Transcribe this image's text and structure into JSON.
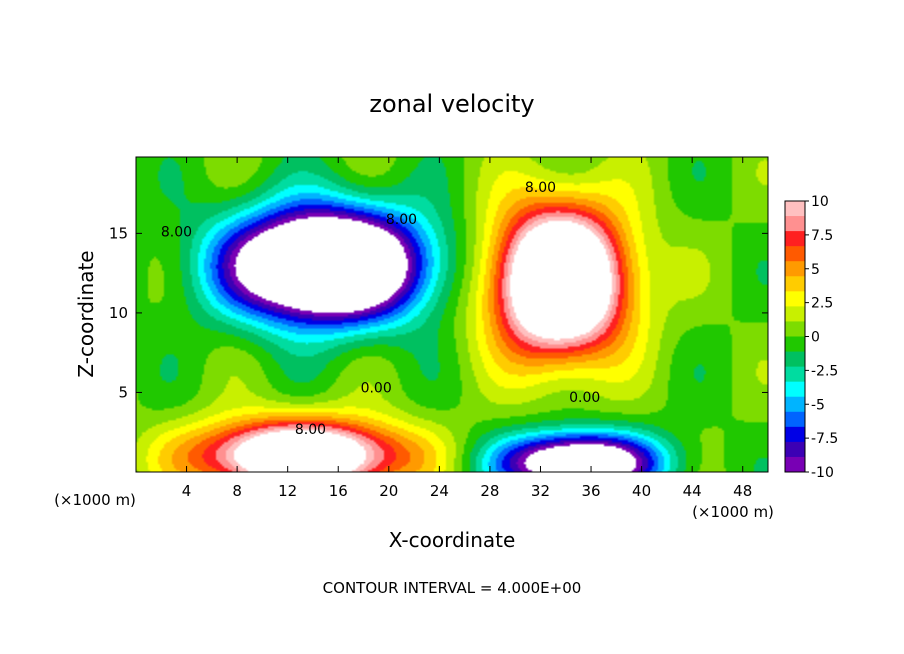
{
  "chart_data": {
    "type": "heatmap",
    "title": "zonal velocity",
    "xlabel": "X-coordinate",
    "ylabel": "Z-coordinate",
    "x_unit_left": "(×1000 m)",
    "x_unit_right": "(×1000 m)",
    "footer": "CONTOUR INTERVAL = 4.000E+00",
    "xlim": [
      0,
      50
    ],
    "ylim": [
      0,
      19.8
    ],
    "x_ticks": [
      "4",
      "8",
      "12",
      "16",
      "20",
      "24",
      "28",
      "32",
      "36",
      "40",
      "44",
      "48"
    ],
    "x_tick_values": [
      4,
      8,
      12,
      16,
      20,
      24,
      28,
      32,
      36,
      40,
      44,
      48
    ],
    "y_ticks": [
      "5",
      "10",
      "15"
    ],
    "y_tick_values": [
      5,
      10,
      15
    ],
    "colorbar": {
      "labels": [
        "10",
        "7.5",
        "5",
        "2.5",
        "0",
        "-2.5",
        "-5",
        "-7.5",
        "-10"
      ],
      "values": [
        10,
        7.5,
        5,
        2.5,
        0,
        -2.5,
        -5,
        -7.5,
        -10
      ],
      "colors": [
        "#ffc0c0",
        "#ff9090",
        "#ff2020",
        "#ff5a00",
        "#ff9a00",
        "#ffcc00",
        "#ffff00",
        "#c8f000",
        "#7ddc00",
        "#20c800",
        "#00c060",
        "#00dca0",
        "#00ffff",
        "#00b4ff",
        "#0064ff",
        "#0000e6",
        "#3c00b4",
        "#7800b4"
      ],
      "min": -10,
      "max": 10
    },
    "contour_labels": [
      {
        "text": "8.00",
        "x": 3.2,
        "y": 14.8
      },
      {
        "text": "8.00",
        "x": 21.0,
        "y": 15.6
      },
      {
        "text": "8.00",
        "x": 32.0,
        "y": 17.6
      },
      {
        "text": "0.00",
        "x": 19.0,
        "y": 5.0
      },
      {
        "text": "0.00",
        "x": 35.5,
        "y": 4.4
      },
      {
        "text": "8.00",
        "x": 13.8,
        "y": 2.4
      }
    ],
    "features": [
      {
        "name": "negative core upper-left",
        "x": 15,
        "y": 13,
        "sx": 7.5,
        "sy": 3.4,
        "amp": -22
      },
      {
        "name": "positive core upper-right",
        "x": 33.5,
        "y": 12,
        "sx": 5.2,
        "sy": 4.6,
        "amp": 20
      },
      {
        "name": "positive core lower-left",
        "x": 13,
        "y": 1.0,
        "sx": 8.0,
        "sy": 2.2,
        "amp": 17
      },
      {
        "name": "negative core lower-right",
        "x": 35,
        "y": 0.6,
        "sx": 6.0,
        "sy": 1.8,
        "amp": -16
      }
    ]
  }
}
